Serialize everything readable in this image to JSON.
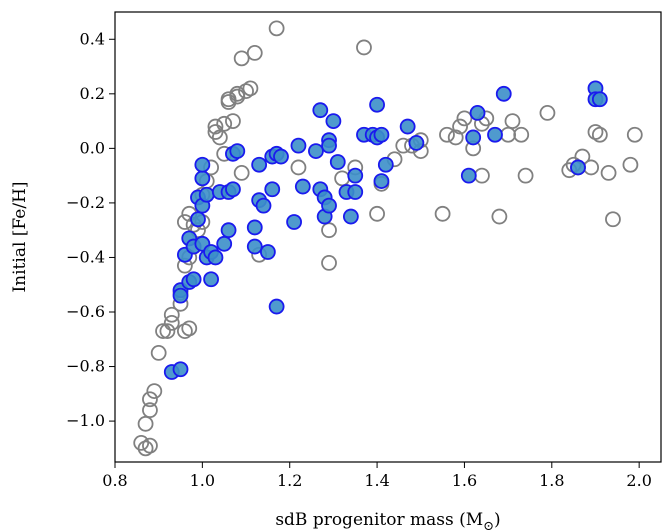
{
  "chart_data": {
    "type": "scatter",
    "title": "",
    "xlabel": "sdB progenitor mass (M",
    "xlabel_subscript": "⊙",
    "xlabel_close": ")",
    "ylabel": "Initial [Fe/H]",
    "xlim": [
      0.8,
      2.05
    ],
    "ylim": [
      -1.15,
      0.5
    ],
    "xticks": [
      0.8,
      1.0,
      1.2,
      1.4,
      1.6,
      1.8,
      2.0
    ],
    "xtick_labels": [
      "0.8",
      "1.0",
      "1.2",
      "1.4",
      "1.6",
      "1.8",
      "2.0"
    ],
    "yticks": [
      0.4,
      0.2,
      0.0,
      -0.2,
      -0.4,
      -0.6,
      -0.8,
      -1.0
    ],
    "ytick_labels": [
      "0.4",
      "0.2",
      "0.0",
      "−0.2",
      "−0.4",
      "−0.6",
      "−0.8",
      "−1.0"
    ],
    "grid": false,
    "legend": "none",
    "series": [
      {
        "marker": "open-circle",
        "color": "#808080",
        "points": [
          [
            0.86,
            -1.08
          ],
          [
            0.87,
            -1.1
          ],
          [
            0.88,
            -1.09
          ],
          [
            0.87,
            -1.01
          ],
          [
            0.88,
            -0.96
          ],
          [
            0.88,
            -0.92
          ],
          [
            0.89,
            -0.89
          ],
          [
            0.9,
            -0.75
          ],
          [
            0.91,
            -0.67
          ],
          [
            0.92,
            -0.67
          ],
          [
            0.93,
            -0.61
          ],
          [
            0.93,
            -0.64
          ],
          [
            0.95,
            -0.57
          ],
          [
            0.95,
            -0.53
          ],
          [
            0.96,
            -0.67
          ],
          [
            0.97,
            -0.66
          ],
          [
            0.96,
            -0.43
          ],
          [
            0.97,
            -0.4
          ],
          [
            0.98,
            -0.36
          ],
          [
            0.96,
            -0.27
          ],
          [
            0.98,
            -0.28
          ],
          [
            0.97,
            -0.24
          ],
          [
            0.99,
            -0.3
          ],
          [
            1.0,
            -0.27
          ],
          [
            1.0,
            -0.17
          ],
          [
            1.01,
            -0.12
          ],
          [
            1.02,
            -0.07
          ],
          [
            1.03,
            0.06
          ],
          [
            1.03,
            0.08
          ],
          [
            1.04,
            0.04
          ],
          [
            1.05,
            0.09
          ],
          [
            1.06,
            0.17
          ],
          [
            1.06,
            0.18
          ],
          [
            1.07,
            0.1
          ],
          [
            1.08,
            0.19
          ],
          [
            1.08,
            0.2
          ],
          [
            1.1,
            0.21
          ],
          [
            1.11,
            0.22
          ],
          [
            1.09,
            0.33
          ],
          [
            1.12,
            0.35
          ],
          [
            1.17,
            0.44
          ],
          [
            1.05,
            -0.02
          ],
          [
            1.09,
            -0.09
          ],
          [
            1.13,
            -0.39
          ],
          [
            1.22,
            -0.07
          ],
          [
            1.29,
            -0.3
          ],
          [
            1.29,
            -0.42
          ],
          [
            1.32,
            -0.11
          ],
          [
            1.35,
            -0.07
          ],
          [
            1.37,
            0.37
          ],
          [
            1.4,
            -0.24
          ],
          [
            1.41,
            -0.13
          ],
          [
            1.44,
            -0.04
          ],
          [
            1.46,
            0.01
          ],
          [
            1.48,
            0.01
          ],
          [
            1.5,
            -0.01
          ],
          [
            1.55,
            -0.24
          ],
          [
            1.56,
            0.05
          ],
          [
            1.58,
            0.04
          ],
          [
            1.59,
            0.08
          ],
          [
            1.6,
            0.11
          ],
          [
            1.62,
            0.0
          ],
          [
            1.64,
            -0.1
          ],
          [
            1.64,
            0.09
          ],
          [
            1.65,
            0.11
          ],
          [
            1.68,
            -0.25
          ],
          [
            1.7,
            0.05
          ],
          [
            1.71,
            0.1
          ],
          [
            1.73,
            0.05
          ],
          [
            1.74,
            -0.1
          ],
          [
            1.79,
            0.13
          ],
          [
            1.84,
            -0.08
          ],
          [
            1.85,
            -0.06
          ],
          [
            1.86,
            -0.07
          ],
          [
            1.87,
            -0.03
          ],
          [
            1.89,
            -0.07
          ],
          [
            1.9,
            0.06
          ],
          [
            1.91,
            0.05
          ],
          [
            1.93,
            -0.09
          ],
          [
            1.94,
            -0.26
          ],
          [
            1.98,
            -0.06
          ],
          [
            1.99,
            0.05
          ],
          [
            1.5,
            0.03
          ]
        ]
      },
      {
        "marker": "filled-circle",
        "color": "#3c8fc9",
        "edge": "#1a1aee",
        "points": [
          [
            0.93,
            -0.82
          ],
          [
            0.95,
            -0.81
          ],
          [
            0.95,
            -0.52
          ],
          [
            0.95,
            -0.54
          ],
          [
            0.96,
            -0.39
          ],
          [
            0.97,
            -0.49
          ],
          [
            0.98,
            -0.48
          ],
          [
            0.97,
            -0.33
          ],
          [
            0.98,
            -0.36
          ],
          [
            0.99,
            -0.26
          ],
          [
            0.99,
            -0.18
          ],
          [
            1.0,
            -0.11
          ],
          [
            1.0,
            -0.21
          ],
          [
            1.0,
            -0.06
          ],
          [
            1.01,
            -0.17
          ],
          [
            1.0,
            -0.35
          ],
          [
            1.01,
            -0.4
          ],
          [
            1.02,
            -0.48
          ],
          [
            1.02,
            -0.38
          ],
          [
            1.03,
            -0.4
          ],
          [
            1.05,
            -0.35
          ],
          [
            1.04,
            -0.16
          ],
          [
            1.06,
            -0.16
          ],
          [
            1.06,
            -0.3
          ],
          [
            1.07,
            -0.15
          ],
          [
            1.07,
            -0.02
          ],
          [
            1.08,
            -0.01
          ],
          [
            1.12,
            -0.29
          ],
          [
            1.12,
            -0.36
          ],
          [
            1.13,
            -0.06
          ],
          [
            1.13,
            -0.19
          ],
          [
            1.14,
            -0.21
          ],
          [
            1.15,
            -0.38
          ],
          [
            1.16,
            -0.15
          ],
          [
            1.16,
            -0.03
          ],
          [
            1.17,
            -0.02
          ],
          [
            1.17,
            -0.58
          ],
          [
            1.18,
            -0.03
          ],
          [
            1.21,
            -0.27
          ],
          [
            1.22,
            0.01
          ],
          [
            1.23,
            -0.14
          ],
          [
            1.26,
            -0.01
          ],
          [
            1.27,
            0.14
          ],
          [
            1.27,
            -0.15
          ],
          [
            1.28,
            -0.18
          ],
          [
            1.28,
            -0.25
          ],
          [
            1.29,
            0.03
          ],
          [
            1.29,
            -0.21
          ],
          [
            1.29,
            0.01
          ],
          [
            1.3,
            0.1
          ],
          [
            1.31,
            -0.05
          ],
          [
            1.33,
            -0.16
          ],
          [
            1.34,
            -0.25
          ],
          [
            1.35,
            -0.16
          ],
          [
            1.35,
            -0.1
          ],
          [
            1.37,
            0.05
          ],
          [
            1.39,
            0.05
          ],
          [
            1.4,
            0.04
          ],
          [
            1.4,
            0.16
          ],
          [
            1.41,
            0.05
          ],
          [
            1.41,
            -0.12
          ],
          [
            1.42,
            -0.06
          ],
          [
            1.47,
            0.08
          ],
          [
            1.49,
            0.02
          ],
          [
            1.61,
            -0.1
          ],
          [
            1.62,
            0.04
          ],
          [
            1.63,
            0.13
          ],
          [
            1.67,
            0.05
          ],
          [
            1.69,
            0.2
          ],
          [
            1.86,
            -0.07
          ],
          [
            1.9,
            0.22
          ],
          [
            1.9,
            0.18
          ],
          [
            1.91,
            0.18
          ]
        ]
      }
    ]
  }
}
